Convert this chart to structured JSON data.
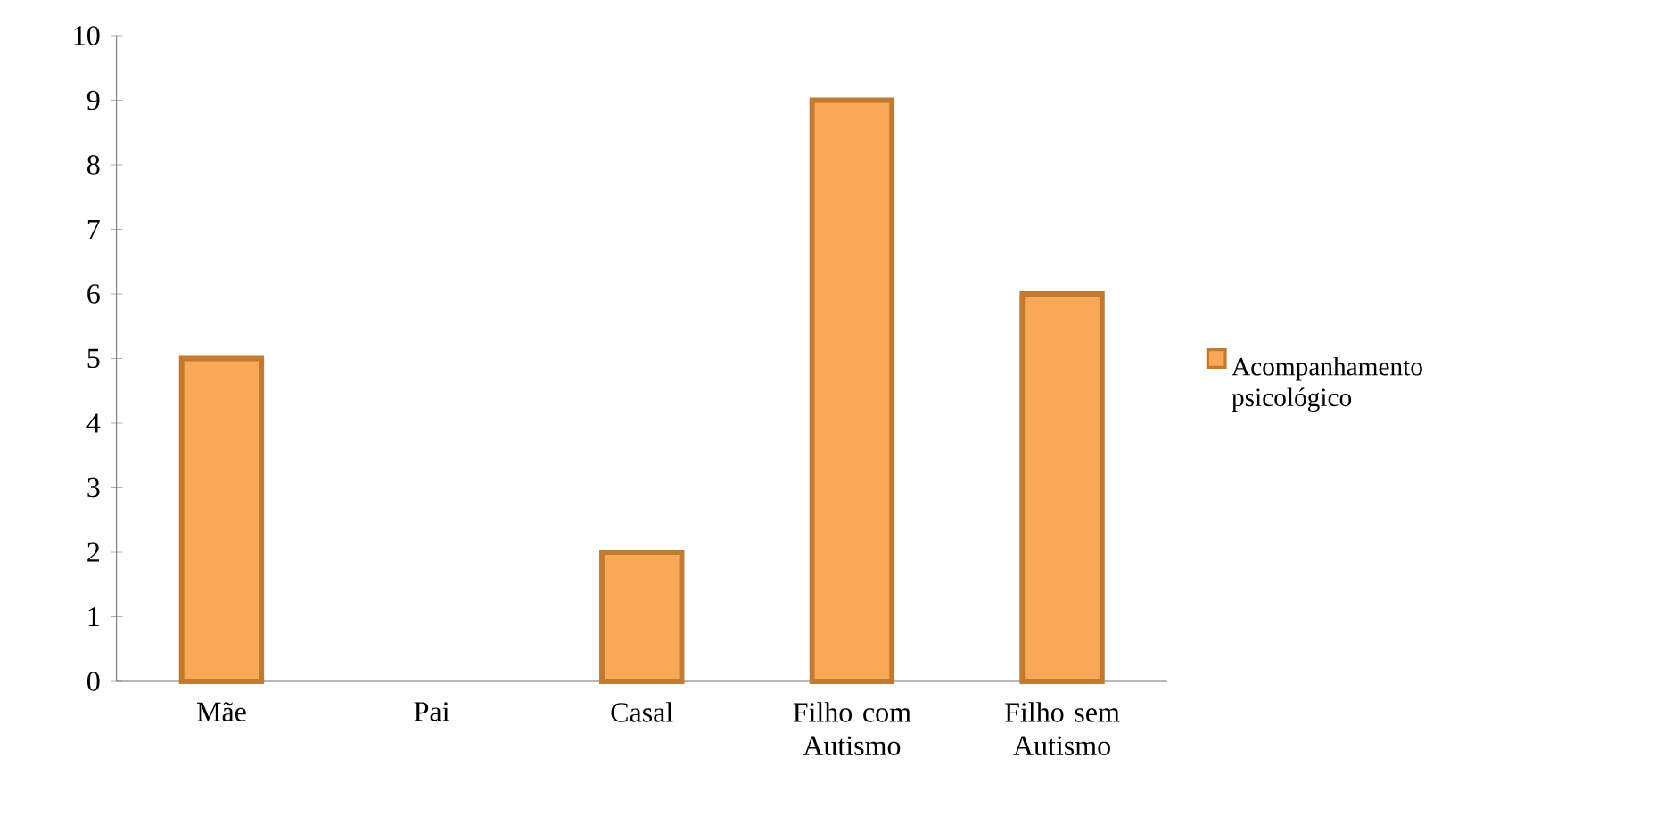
{
  "chart_data": {
    "type": "bar",
    "categories": [
      "Mãe",
      "Pai",
      "Casal",
      "Filho com Autismo",
      "Filho sem Autismo"
    ],
    "series": [
      {
        "name": "Acompanhamento psicológico",
        "color": "#f9a857",
        "values": [
          5,
          0,
          2,
          9,
          6
        ]
      }
    ],
    "ylim": [
      0,
      10
    ],
    "yticks": [
      0,
      1,
      2,
      3,
      4,
      5,
      6,
      7,
      8,
      9,
      10
    ],
    "grid": false,
    "legend": "right"
  }
}
